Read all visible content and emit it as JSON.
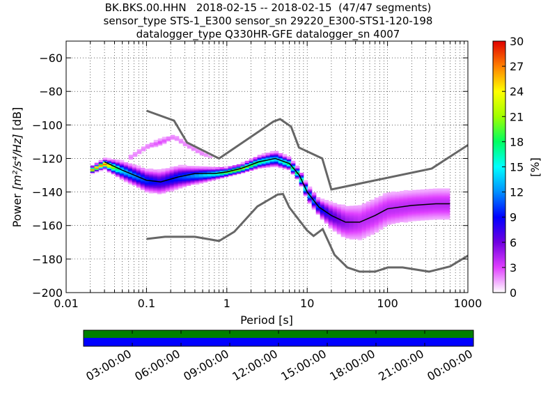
{
  "title": {
    "line1": "BK.BKS.00.HHN   2018-02-15 -- 2018-02-15  (47/47 segments)",
    "line2": "sensor_type STS-1_E300 sensor_sn 29220_E300-STS1-120-198",
    "line3": "datalogger_type Q330HR-GFE datalogger_sn 4007"
  },
  "chart_data": {
    "type": "heatmap",
    "xlabel": "Period [s]",
    "ylabel_prefix": "Power ",
    "ylabel_units": "[m²/s⁴/Hz]",
    "ylabel_suffix": " [dB]",
    "x_scale": "log",
    "xlim": [
      0.01,
      1000
    ],
    "ylim": [
      -200,
      -50
    ],
    "x_ticks": [
      {
        "value": 0.01,
        "label": "0.01"
      },
      {
        "value": 0.1,
        "label": "0.1"
      },
      {
        "value": 1,
        "label": "1"
      },
      {
        "value": 10,
        "label": "10"
      },
      {
        "value": 100,
        "label": "100"
      },
      {
        "value": 1000,
        "label": "1000"
      }
    ],
    "y_ticks": [
      {
        "value": -60,
        "label": "−60"
      },
      {
        "value": -80,
        "label": "−80"
      },
      {
        "value": -100,
        "label": "−100"
      },
      {
        "value": -120,
        "label": "−120"
      },
      {
        "value": -140,
        "label": "−140"
      },
      {
        "value": -160,
        "label": "−160"
      },
      {
        "value": -180,
        "label": "−180"
      },
      {
        "value": -200,
        "label": "−200"
      }
    ],
    "grid": "dotted",
    "colorbar": {
      "label": "[%]",
      "range": [
        0,
        30
      ],
      "ticks": [
        {
          "value": 0,
          "label": "0"
        },
        {
          "value": 3,
          "label": "3"
        },
        {
          "value": 6,
          "label": "6"
        },
        {
          "value": 9,
          "label": "9"
        },
        {
          "value": 12,
          "label": "12"
        },
        {
          "value": 15,
          "label": "15"
        },
        {
          "value": 18,
          "label": "18"
        },
        {
          "value": 21,
          "label": "21"
        },
        {
          "value": 24,
          "label": "24"
        },
        {
          "value": 27,
          "label": "27"
        },
        {
          "value": 30,
          "label": "30"
        }
      ]
    },
    "noise_models": {
      "color": "#666666",
      "high": [
        [
          0.1,
          -91.5
        ],
        [
          0.22,
          -97.4
        ],
        [
          0.32,
          -110.5
        ],
        [
          0.8,
          -120
        ],
        [
          3.8,
          -98
        ],
        [
          4.6,
          -96.5
        ],
        [
          6.3,
          -101
        ],
        [
          7.9,
          -113.5
        ],
        [
          15.4,
          -120
        ],
        [
          20,
          -138.5
        ],
        [
          354.8,
          -126
        ],
        [
          1000,
          -112
        ]
      ],
      "low": [
        [
          0.1,
          -168
        ],
        [
          0.17,
          -166.7
        ],
        [
          0.4,
          -166.7
        ],
        [
          0.8,
          -169.2
        ],
        [
          1.24,
          -163.7
        ],
        [
          2.4,
          -148.6
        ],
        [
          4.3,
          -141.5
        ],
        [
          5.0,
          -141.2
        ],
        [
          6.0,
          -149.2
        ],
        [
          10.0,
          -163
        ],
        [
          12.0,
          -166.2
        ],
        [
          15.6,
          -162.1
        ],
        [
          21.9,
          -177.5
        ],
        [
          31.6,
          -185
        ],
        [
          45,
          -187.5
        ],
        [
          70,
          -187.5
        ],
        [
          101,
          -185
        ],
        [
          154,
          -185
        ],
        [
          328,
          -187.5
        ],
        [
          600,
          -184.4
        ],
        [
          1000,
          -178
        ]
      ]
    },
    "mean_curve": [
      [
        0.03,
        -122
      ],
      [
        0.05,
        -127
      ],
      [
        0.1,
        -133
      ],
      [
        0.15,
        -134
      ],
      [
        0.25,
        -131
      ],
      [
        0.4,
        -129
      ],
      [
        0.7,
        -129
      ],
      [
        1.0,
        -128
      ],
      [
        1.5,
        -126
      ],
      [
        2.5,
        -122
      ],
      [
        4.0,
        -120
      ],
      [
        6.0,
        -123
      ],
      [
        8.0,
        -130
      ],
      [
        10.0,
        -140
      ],
      [
        14.0,
        -149
      ],
      [
        20.0,
        -154
      ],
      [
        30.0,
        -158
      ],
      [
        45.0,
        -158
      ],
      [
        70.0,
        -154
      ],
      [
        100.0,
        -150
      ],
      [
        200.0,
        -148
      ],
      [
        400.0,
        -147
      ],
      [
        600.0,
        -147
      ]
    ],
    "density_bands": [
      {
        "label": "main-band",
        "points": [
          [
            0.02,
            -127,
            2,
            26
          ],
          [
            0.03,
            -123,
            3,
            28
          ],
          [
            0.05,
            -127,
            6,
            14
          ],
          [
            0.1,
            -133,
            8,
            10
          ],
          [
            0.15,
            -134,
            9,
            8
          ],
          [
            0.25,
            -131,
            8,
            10
          ],
          [
            0.4,
            -130,
            6,
            12
          ],
          [
            0.7,
            -129,
            4,
            16
          ],
          [
            1.0,
            -128,
            3,
            20
          ],
          [
            1.5,
            -126,
            3,
            22
          ],
          [
            2.5,
            -122,
            4,
            18
          ],
          [
            4.0,
            -120,
            5,
            14
          ],
          [
            6.0,
            -123,
            4,
            18
          ],
          [
            8.0,
            -130,
            4,
            18
          ],
          [
            10.0,
            -140,
            5,
            14
          ],
          [
            14.0,
            -149,
            6,
            10
          ],
          [
            20.0,
            -154,
            10,
            7
          ],
          [
            30.0,
            -158,
            14,
            5
          ],
          [
            45.0,
            -158,
            16,
            4
          ],
          [
            70.0,
            -154,
            16,
            4
          ],
          [
            100.0,
            -150,
            15,
            4
          ],
          [
            200.0,
            -148,
            14,
            4
          ],
          [
            400.0,
            -147,
            14,
            4
          ],
          [
            600.0,
            -147,
            14,
            4
          ]
        ]
      },
      {
        "label": "upper-band",
        "points": [
          [
            0.06,
            -120,
            3,
            2
          ],
          [
            0.1,
            -113,
            3,
            2
          ],
          [
            0.15,
            -110,
            3,
            3
          ],
          [
            0.22,
            -107,
            3,
            2
          ],
          [
            0.32,
            -112,
            3,
            2
          ],
          [
            0.5,
            -117,
            3,
            2
          ],
          [
            0.7,
            -120,
            2,
            1
          ]
        ]
      }
    ],
    "time_axis": {
      "labels": [
        "03:00:00",
        "06:00:00",
        "09:00:00",
        "12:00:00",
        "15:00:00",
        "18:00:00",
        "21:00:00",
        "00:00:00"
      ],
      "top_color": "#008000",
      "bottom_color": "#0000ff"
    }
  }
}
